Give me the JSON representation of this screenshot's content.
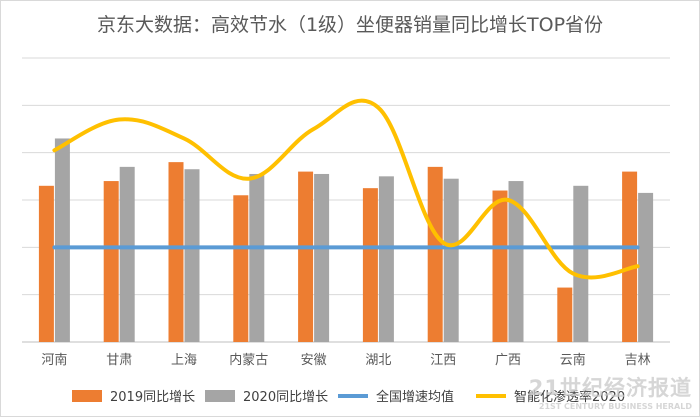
{
  "chart_data": {
    "type": "bar",
    "title": "京东大数据：高效节水（1级）坐便器销量同比增长TOP省份",
    "categories": [
      "河南",
      "甘肃",
      "上海",
      "内蒙古",
      "安徽",
      "湖北",
      "江西",
      "广西",
      "云南",
      "吉林"
    ],
    "series": [
      {
        "name": "2019同比增长",
        "type": "bar",
        "color": "#ed7d31",
        "values": [
          3.3,
          3.4,
          3.8,
          3.1,
          3.6,
          3.25,
          3.7,
          3.2,
          1.15,
          3.6
        ]
      },
      {
        "name": "2020同比增长",
        "type": "bar",
        "color": "#a5a5a5",
        "values": [
          4.3,
          3.7,
          3.65,
          3.55,
          3.55,
          3.5,
          3.45,
          3.4,
          3.3,
          3.15
        ]
      },
      {
        "name": "全国增速均值",
        "type": "line",
        "color": "#5b9bd5",
        "values": [
          2.0,
          2.0,
          2.0,
          2.0,
          2.0,
          2.0,
          2.0,
          2.0,
          2.0,
          2.0
        ]
      },
      {
        "name": "智能化渗透率2020",
        "type": "line",
        "smooth": true,
        "color": "#ffc000",
        "values": [
          4.05,
          4.7,
          4.3,
          3.45,
          4.5,
          4.95,
          2.1,
          3.0,
          1.45,
          1.6
        ]
      }
    ],
    "ylim": [
      0,
      6
    ],
    "grid": true,
    "legend": "bottom"
  },
  "watermark": {
    "main": "21世纪经济报道",
    "sub": "21ST CENTURY BUSINESS HERALD"
  }
}
